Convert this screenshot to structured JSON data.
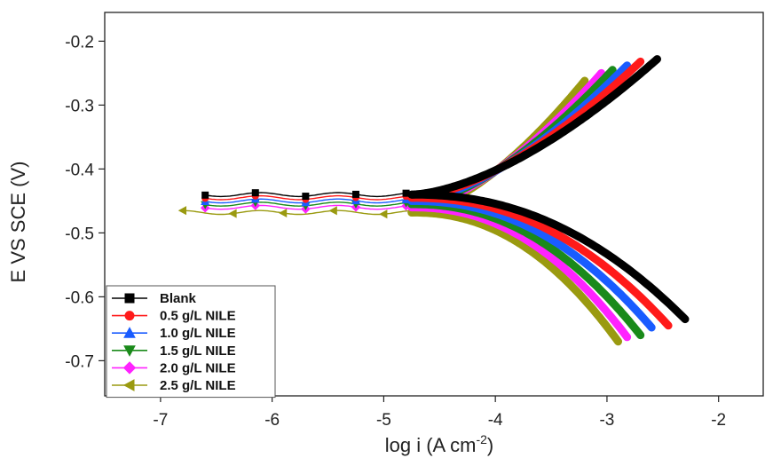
{
  "chart_data": {
    "type": "line",
    "title": "",
    "xlabel": "log i (A cm",
    "xlabel_sup": "-2",
    "xlabel_close": ")",
    "ylabel": "E VS SCE (V)",
    "xlim": [
      -7.5,
      -1.6
    ],
    "ylim": [
      -0.755,
      -0.155
    ],
    "xticks": [
      -7,
      -6,
      -5,
      -4,
      -3,
      -2
    ],
    "yticks": [
      -0.2,
      -0.3,
      -0.4,
      -0.5,
      -0.6,
      -0.7
    ],
    "xtick_labels": [
      "-7",
      "-6",
      "-5",
      "-4",
      "-3",
      "-2"
    ],
    "ytick_labels": [
      "-0.2",
      "-0.3",
      "-0.4",
      "-0.5",
      "-0.6",
      "-0.7"
    ],
    "grid": false,
    "legend_position": "bottom-left",
    "series": [
      {
        "name": "Blank",
        "color": "#000000",
        "marker": "square",
        "ecorr": -0.44,
        "x_start": -6.6,
        "anodic_end": [
          -2.55,
          -0.228
        ],
        "cathodic_end": [
          -2.3,
          -0.635
        ]
      },
      {
        "name": "0.5 g/L NILE",
        "color": "#ff1a1a",
        "marker": "circle",
        "ecorr": -0.445,
        "x_start": -6.6,
        "anodic_end": [
          -2.7,
          -0.232
        ],
        "cathodic_end": [
          -2.45,
          -0.645
        ]
      },
      {
        "name": "1.0 g/L NILE",
        "color": "#1a5cff",
        "marker": "triangle-up",
        "ecorr": -0.45,
        "x_start": -6.6,
        "anodic_end": [
          -2.82,
          -0.238
        ],
        "cathodic_end": [
          -2.6,
          -0.648
        ]
      },
      {
        "name": "1.5 g/L NILE",
        "color": "#1a8a1a",
        "marker": "triangle-down",
        "ecorr": -0.455,
        "x_start": -6.6,
        "anodic_end": [
          -2.95,
          -0.245
        ],
        "cathodic_end": [
          -2.7,
          -0.66
        ]
      },
      {
        "name": "2.0 g/L NILE",
        "color": "#ff22ff",
        "marker": "diamond",
        "ecorr": -0.46,
        "x_start": -6.6,
        "anodic_end": [
          -3.05,
          -0.25
        ],
        "cathodic_end": [
          -2.82,
          -0.663
        ]
      },
      {
        "name": "2.5 g/L NILE",
        "color": "#9a9a10",
        "marker": "triangle-left",
        "ecorr": -0.468,
        "x_start": -6.8,
        "anodic_end": [
          -3.2,
          -0.262
        ],
        "cathodic_end": [
          -2.9,
          -0.67
        ]
      }
    ]
  }
}
